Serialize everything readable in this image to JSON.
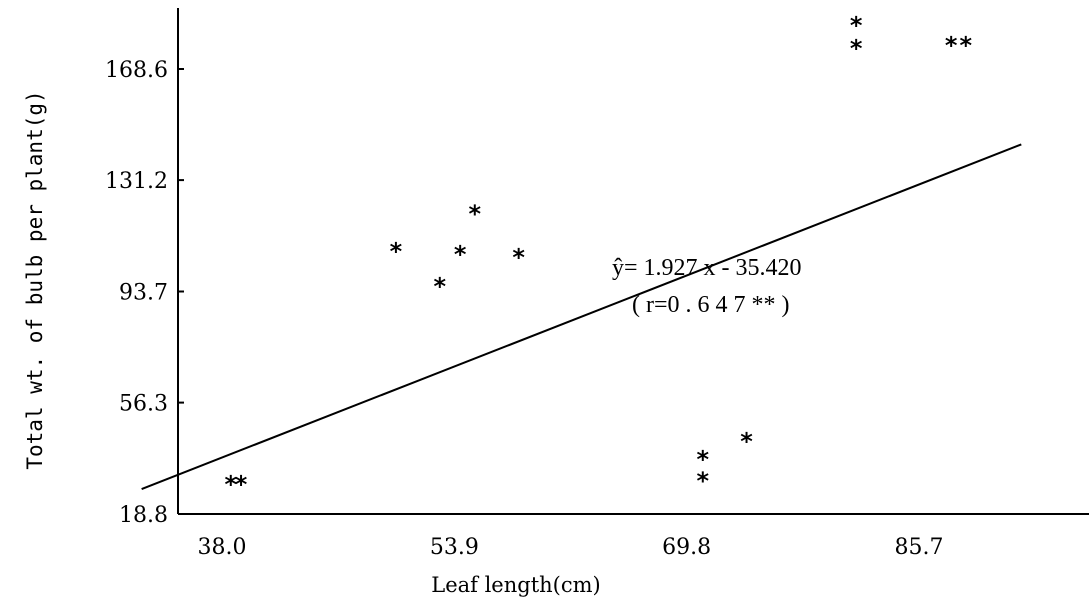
{
  "chart_data": {
    "type": "scatter",
    "title": "",
    "xlabel": "Leaf length(cm)",
    "ylabel": "Total wt. of bulb per plant(g)",
    "x_ticks": [
      "38.0",
      "53.9",
      "69.8",
      "85.7"
    ],
    "x_tick_values": [
      38.0,
      53.9,
      69.8,
      85.7
    ],
    "y_ticks": [
      "18.8",
      "56.3",
      "93.7",
      "131.2",
      "168.6"
    ],
    "y_tick_values": [
      18.8,
      56.3,
      93.7,
      131.2,
      168.6
    ],
    "xlim": [
      32.5,
      95.8
    ],
    "ylim": [
      18.8,
      187.0
    ],
    "grid": false,
    "marker": "*",
    "points": [
      {
        "x": 38.6,
        "y": 29.0
      },
      {
        "x": 39.3,
        "y": 29.0
      },
      {
        "x": 49.9,
        "y": 107.5
      },
      {
        "x": 52.9,
        "y": 95.7
      },
      {
        "x": 55.3,
        "y": 120.2
      },
      {
        "x": 54.3,
        "y": 106.5
      },
      {
        "x": 58.3,
        "y": 105.5
      },
      {
        "x": 70.9,
        "y": 30.2
      },
      {
        "x": 73.9,
        "y": 43.6
      },
      {
        "x": 70.9,
        "y": 37.4
      },
      {
        "x": 81.4,
        "y": 175.8
      },
      {
        "x": 81.4,
        "y": 183.6
      },
      {
        "x": 87.9,
        "y": 176.8
      },
      {
        "x": 88.9,
        "y": 176.8
      }
    ],
    "regression": {
      "slope": 1.927,
      "intercept": -35.42,
      "x_range": [
        32.5,
        92.7
      ],
      "equation": "ŷ= 1.927 x - 35.420",
      "r_label": "( r=0 . 6 4 7 ** )"
    }
  }
}
